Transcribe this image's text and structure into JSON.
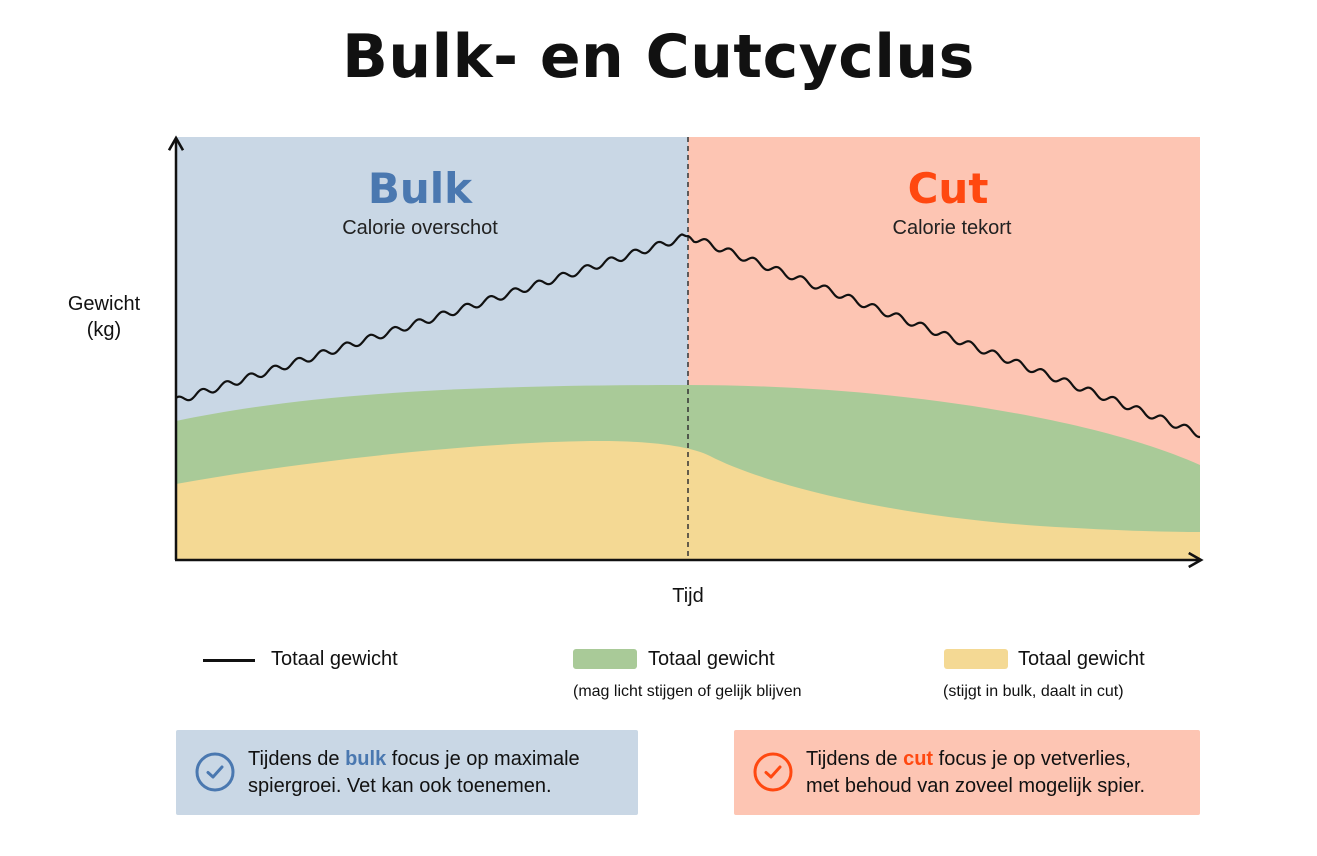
{
  "title": "Bulk- en Cutcyclus",
  "phases": {
    "bulk": {
      "title": "Bulk",
      "subtitle": "Calorie overschot",
      "color": "#4a78b0",
      "bg": "#c9d7e5"
    },
    "cut": {
      "title": "Cut",
      "subtitle": "Calorie tekort",
      "color": "#ff4810",
      "bg": "#fdc5b3"
    }
  },
  "axes": {
    "y_label_line1": "Gewicht",
    "y_label_line2": "(kg)",
    "x_label": "Tijd"
  },
  "colors": {
    "green_band": "#a9ca98",
    "yellow_band": "#f4d994",
    "line": "#111111"
  },
  "legend": [
    {
      "label": "Totaal gewicht",
      "sub": ""
    },
    {
      "label": "Totaal gewicht",
      "sub": "(mag licht stijgen of gelijk blijven"
    },
    {
      "label": "Totaal gewicht",
      "sub": "(stijgt in bulk, daalt in cut)"
    }
  ],
  "notes": {
    "bulk": {
      "pre": "Tijdens de ",
      "highlight": "bulk",
      "post": " focus je op maximale",
      "line2": "spiergroei. Vet kan ook toenemen."
    },
    "cut": {
      "pre": "Tijdens de ",
      "highlight": "cut",
      "post": " focus je op vetverlies,",
      "line2": "met behoud van zoveel mogelijk spier."
    }
  }
}
